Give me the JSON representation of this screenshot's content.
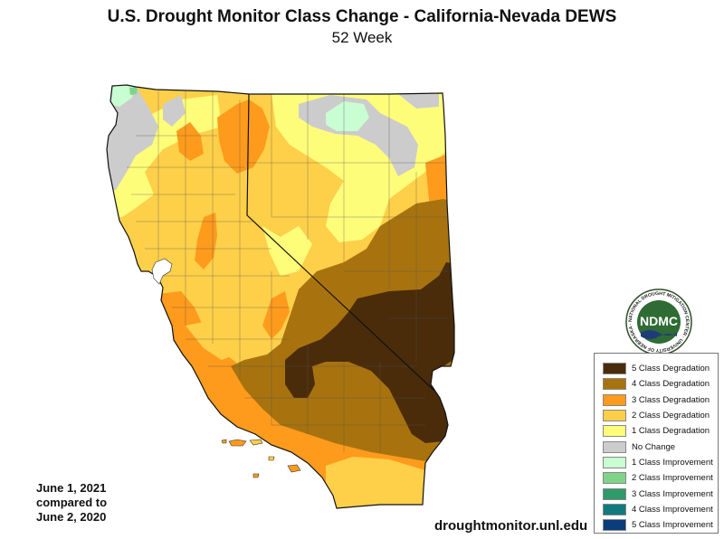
{
  "title": "U.S. Drought Monitor Class Change - California-Nevada DEWS",
  "subtitle": "52 Week",
  "date_note": {
    "line1": "June 1, 2021",
    "line2": "compared to",
    "line3": "June 2, 2020"
  },
  "website": "droughtmonitor.unl.edu",
  "logo": {
    "text": "NDMC",
    "ring_text": "NATIONAL DROUGHT MITIGATION CENTER · UNIVERSITY OF NEBRASKA ·",
    "icon": "ndmc-logo-icon"
  },
  "legend": [
    {
      "label": "5 Class Degradation",
      "color": "#4a2c0b"
    },
    {
      "label": "4 Class Degradation",
      "color": "#a8730f"
    },
    {
      "label": "3 Class Degradation",
      "color": "#fe9b1c"
    },
    {
      "label": "2 Class Degradation",
      "color": "#fed049"
    },
    {
      "label": "1 Class Degradation",
      "color": "#fefd7a"
    },
    {
      "label": "No Change",
      "color": "#cccccc"
    },
    {
      "label": "1 Class Improvement",
      "color": "#c9fdd2"
    },
    {
      "label": "2 Class Improvement",
      "color": "#7fd48a"
    },
    {
      "label": "3 Class Improvement",
      "color": "#2f9a6a"
    },
    {
      "label": "4 Class Improvement",
      "color": "#117a7e"
    },
    {
      "label": "5 Class Improvement",
      "color": "#0a3d7a"
    }
  ]
}
